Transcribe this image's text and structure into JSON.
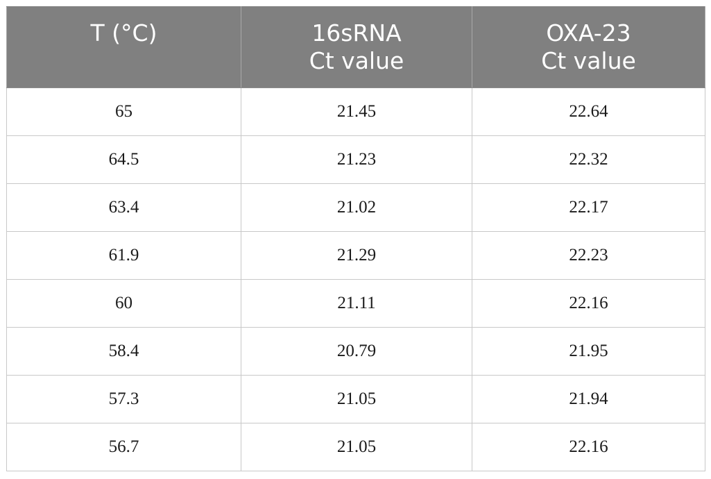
{
  "table": {
    "headers": [
      {
        "lines": [
          "T (°C)"
        ]
      },
      {
        "lines": [
          "16sRNA",
          "Ct value"
        ]
      },
      {
        "lines": [
          "OXA-23",
          "Ct value"
        ]
      }
    ],
    "rows": [
      [
        "65",
        "21.45",
        "22.64"
      ],
      [
        "64.5",
        "21.23",
        "22.32"
      ],
      [
        "63.4",
        "21.02",
        "22.17"
      ],
      [
        "61.9",
        "21.29",
        "22.23"
      ],
      [
        "60",
        "21.11",
        "22.16"
      ],
      [
        "58.4",
        "20.79",
        "21.95"
      ],
      [
        "57.3",
        "21.05",
        "21.94"
      ],
      [
        "56.7",
        "21.05",
        "22.16"
      ]
    ]
  },
  "colors": {
    "header_bg": "#808080",
    "header_text": "#ffffff",
    "grid": "#c8c8c8"
  }
}
